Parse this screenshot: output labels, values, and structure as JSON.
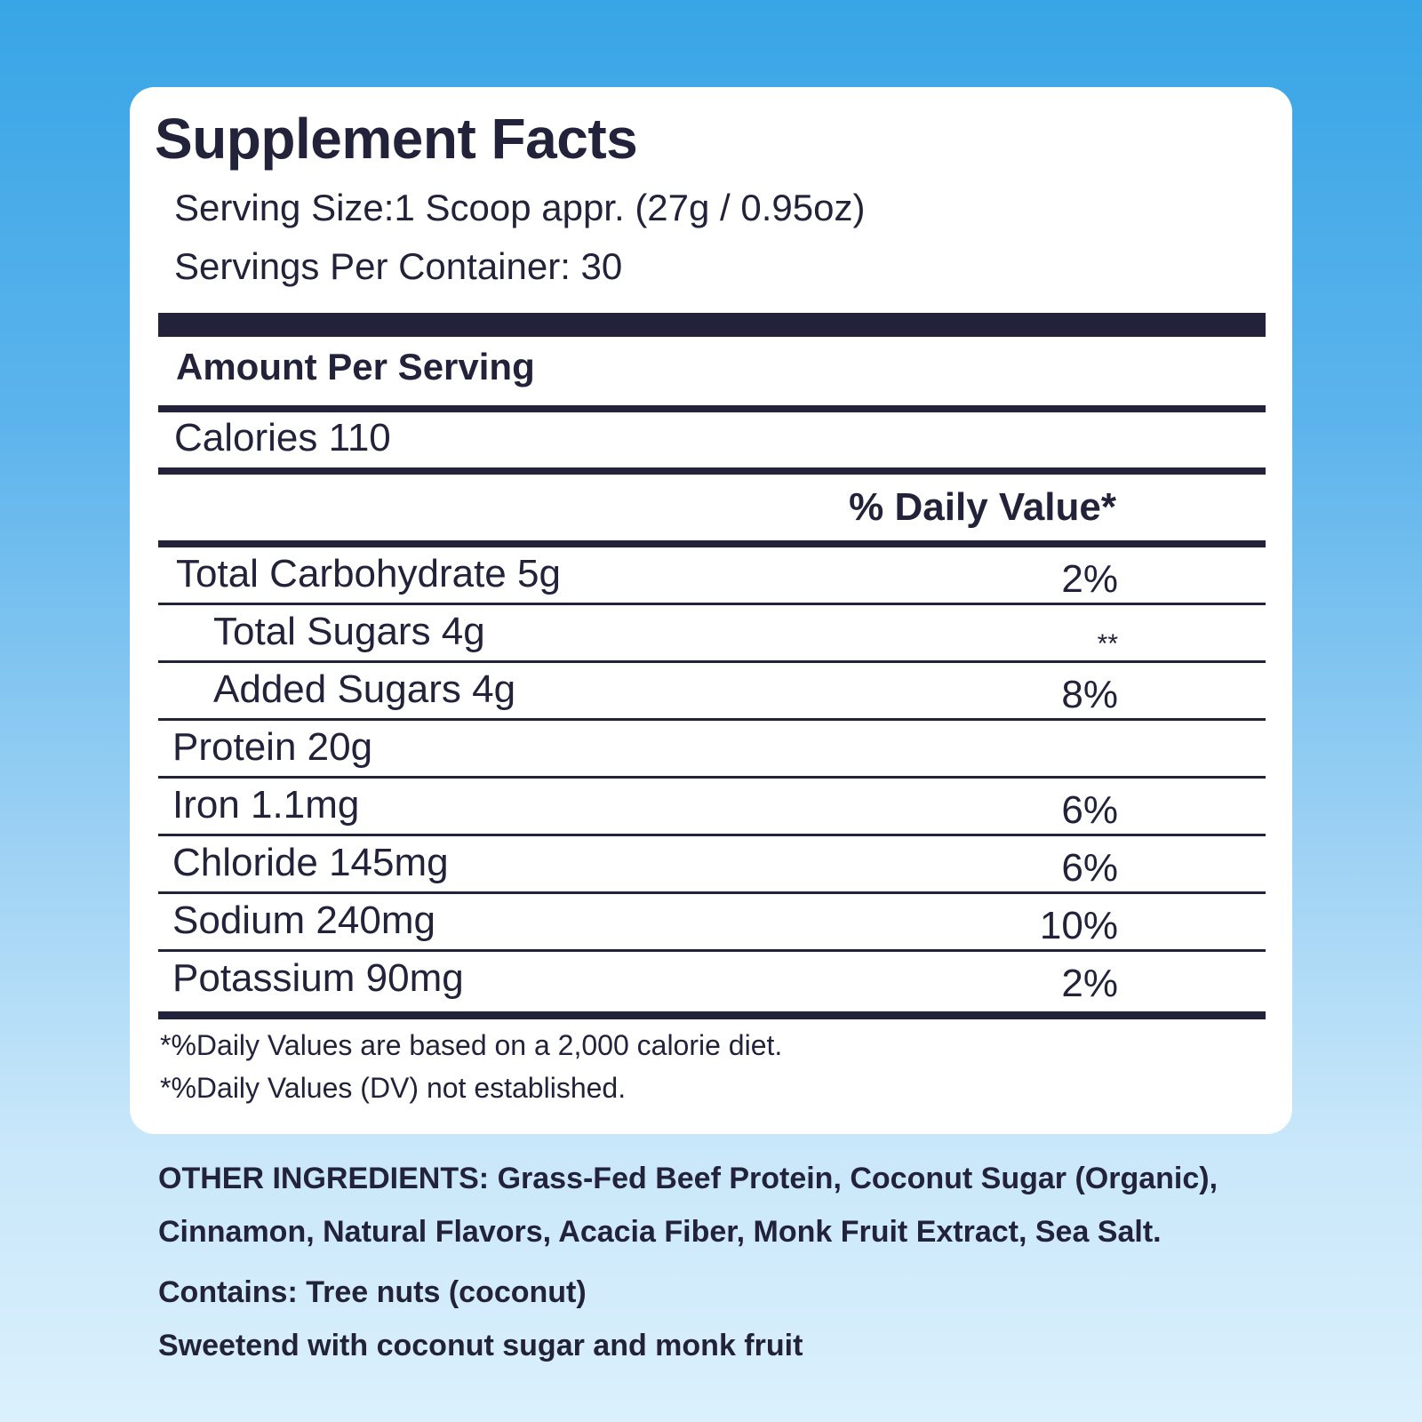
{
  "title": "Supplement Facts",
  "serving_size": "Serving Size:1 Scoop appr. (27g / 0.95oz)",
  "servings_per_container": "Servings Per Container: 30",
  "amount_per_serving": "Amount Per Serving",
  "calories": "Calories 110",
  "daily_value_header": "% Daily Value*",
  "nutrients": [
    {
      "name": "Total Carbohydrate 5g",
      "dv": "2%"
    },
    {
      "name": "Total Sugars 4g",
      "dv": "**"
    },
    {
      "name": "Added Sugars 4g",
      "dv": "8%"
    },
    {
      "name": "Protein 20g",
      "dv": ""
    },
    {
      "name": "Iron 1.1mg",
      "dv": "6%"
    },
    {
      "name": "Chloride 145mg",
      "dv": "6%"
    },
    {
      "name": "Sodium 240mg",
      "dv": "10%"
    },
    {
      "name": "Potassium 90mg",
      "dv": "2%"
    }
  ],
  "footnotes": [
    "*%Daily Values are based on a 2,000 calorie diet.",
    "*%Daily Values (DV) not established."
  ],
  "other_ingredients": {
    "line1": "OTHER INGREDIENTS: Grass-Fed Beef Protein, Coconut Sugar (Organic),",
    "line2": "Cinnamon, Natural Flavors, Acacia Fiber, Monk Fruit Extract, Sea Salt."
  },
  "contains": "Contains: Tree nuts (coconut)",
  "sweetened": "Sweetend with coconut sugar and monk fruit"
}
